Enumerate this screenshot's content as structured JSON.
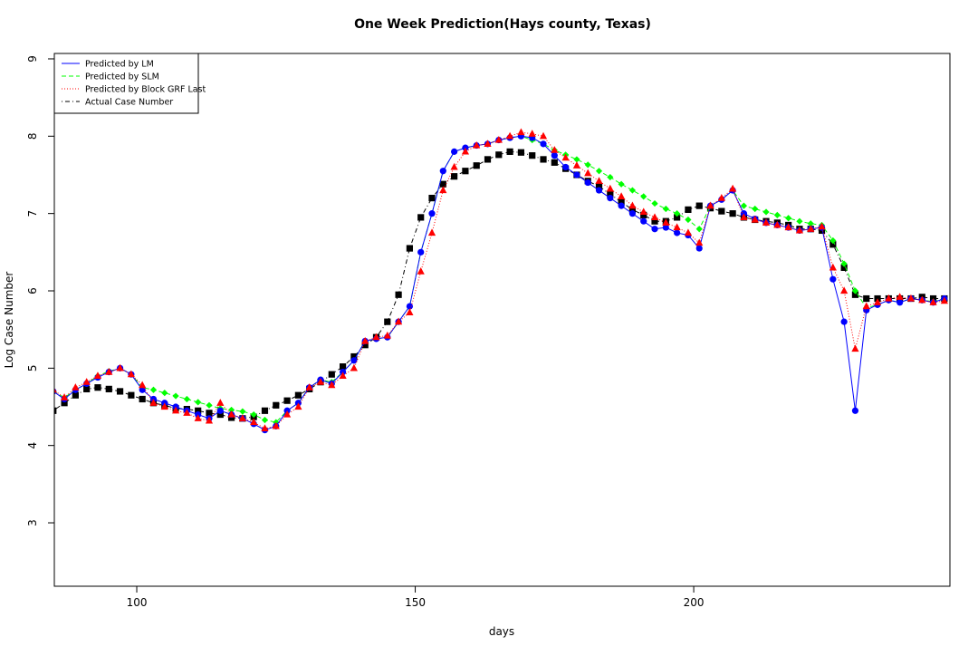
{
  "chart_data": {
    "type": "line",
    "title": "One Week Prediction(Hays county, Texas)",
    "x_label": "days",
    "y_label": "Log Case Number",
    "xlim": [
      85.2,
      246
    ],
    "ylim": [
      2.18,
      9.07
    ],
    "xticks": [
      100,
      150,
      200
    ],
    "yticks": [
      3,
      4,
      5,
      6,
      7,
      8,
      9
    ],
    "legend_position": "top-left",
    "x": [
      85,
      87,
      89,
      91,
      93,
      95,
      97,
      99,
      101,
      103,
      105,
      107,
      109,
      111,
      113,
      115,
      117,
      119,
      121,
      123,
      125,
      127,
      129,
      131,
      133,
      135,
      137,
      139,
      141,
      143,
      145,
      147,
      149,
      151,
      153,
      155,
      157,
      159,
      161,
      163,
      165,
      167,
      169,
      171,
      173,
      175,
      177,
      179,
      181,
      183,
      185,
      187,
      189,
      191,
      193,
      195,
      197,
      199,
      201,
      203,
      205,
      207,
      209,
      211,
      213,
      215,
      217,
      219,
      221,
      223,
      225,
      227,
      229,
      231,
      233,
      235,
      237,
      239,
      241,
      243,
      245
    ],
    "series": [
      {
        "name": "Predicted by LM",
        "color": "#0000ff",
        "line_style": "solid",
        "marker": "circle",
        "values": [
          4.7,
          4.6,
          4.72,
          4.8,
          4.88,
          4.95,
          5.0,
          4.92,
          4.72,
          4.6,
          4.55,
          4.5,
          4.45,
          4.4,
          4.35,
          4.45,
          4.4,
          4.35,
          4.28,
          4.2,
          4.25,
          4.45,
          4.55,
          4.75,
          4.85,
          4.8,
          4.95,
          5.1,
          5.35,
          5.38,
          5.4,
          5.6,
          5.8,
          6.5,
          7.0,
          7.55,
          7.8,
          7.85,
          7.88,
          7.9,
          7.95,
          7.98,
          8.0,
          7.98,
          7.9,
          7.75,
          7.6,
          7.5,
          7.4,
          7.3,
          7.2,
          7.1,
          7.0,
          6.9,
          6.8,
          6.82,
          6.75,
          6.72,
          6.55,
          7.1,
          7.18,
          7.3,
          7.0,
          6.93,
          6.88,
          6.85,
          6.82,
          6.78,
          6.8,
          6.82,
          6.15,
          5.6,
          4.45,
          5.75,
          5.82,
          5.88,
          5.85,
          5.9,
          5.88,
          5.85,
          5.9
        ]
      },
      {
        "name": "Predicted by SLM",
        "color": "#00ff00",
        "line_style": "dashed",
        "marker": "diamond",
        "values": [
          4.7,
          4.62,
          4.72,
          4.8,
          4.9,
          4.96,
          5.0,
          4.92,
          4.75,
          4.72,
          4.68,
          4.64,
          4.6,
          4.56,
          4.52,
          4.48,
          4.46,
          4.44,
          4.4,
          4.33,
          4.3,
          4.45,
          4.55,
          4.75,
          4.85,
          4.82,
          4.95,
          5.1,
          5.35,
          5.38,
          5.4,
          5.6,
          5.8,
          6.5,
          7.0,
          7.55,
          7.8,
          7.85,
          7.88,
          7.9,
          7.95,
          7.98,
          8.0,
          7.95,
          7.9,
          7.82,
          7.76,
          7.7,
          7.63,
          7.55,
          7.47,
          7.38,
          7.3,
          7.22,
          7.13,
          7.06,
          7.0,
          6.92,
          6.8,
          7.1,
          7.18,
          7.3,
          7.1,
          7.06,
          7.02,
          6.98,
          6.94,
          6.9,
          6.87,
          6.85,
          6.65,
          6.35,
          6.0,
          5.78,
          5.82,
          5.88,
          5.85,
          5.9,
          5.88,
          5.86,
          5.9
        ]
      },
      {
        "name": "Predicted by Block GRF Last",
        "color": "#ff0000",
        "line_style": "dotted",
        "marker": "triangle",
        "values": [
          4.72,
          4.62,
          4.75,
          4.82,
          4.9,
          4.95,
          5.0,
          4.92,
          4.78,
          4.55,
          4.5,
          4.45,
          4.42,
          4.35,
          4.32,
          4.55,
          4.4,
          4.35,
          4.3,
          4.22,
          4.25,
          4.4,
          4.5,
          4.75,
          4.82,
          4.78,
          4.9,
          5.0,
          5.35,
          5.4,
          5.42,
          5.6,
          5.72,
          6.25,
          6.75,
          7.3,
          7.6,
          7.8,
          7.88,
          7.9,
          7.95,
          8.0,
          8.05,
          8.03,
          8.0,
          7.82,
          7.72,
          7.62,
          7.52,
          7.42,
          7.32,
          7.22,
          7.1,
          7.02,
          6.95,
          6.88,
          6.82,
          6.75,
          6.62,
          7.1,
          7.2,
          7.32,
          6.95,
          6.92,
          6.88,
          6.85,
          6.82,
          6.78,
          6.8,
          6.83,
          6.3,
          6.0,
          5.25,
          5.8,
          5.85,
          5.9,
          5.92,
          5.9,
          5.88,
          5.85,
          5.87
        ]
      },
      {
        "name": "Actual Case Number",
        "color": "#000000",
        "line_style": "dotdash",
        "marker": "square",
        "values": [
          4.45,
          4.55,
          4.65,
          4.73,
          4.75,
          4.73,
          4.7,
          4.65,
          4.6,
          4.55,
          4.52,
          4.48,
          4.47,
          4.45,
          4.42,
          4.4,
          4.36,
          4.35,
          4.37,
          4.45,
          4.52,
          4.58,
          4.65,
          4.73,
          4.82,
          4.92,
          5.02,
          5.15,
          5.3,
          5.4,
          5.6,
          5.95,
          6.55,
          6.95,
          7.2,
          7.38,
          7.48,
          7.55,
          7.62,
          7.7,
          7.76,
          7.8,
          7.79,
          7.75,
          7.7,
          7.66,
          7.58,
          7.5,
          7.42,
          7.35,
          7.25,
          7.15,
          7.05,
          6.98,
          6.9,
          6.9,
          6.95,
          7.05,
          7.1,
          7.07,
          7.03,
          7.0,
          6.95,
          6.92,
          6.9,
          6.88,
          6.85,
          6.8,
          6.8,
          6.78,
          6.6,
          6.3,
          5.95,
          5.9,
          5.9,
          5.9,
          5.9,
          5.9,
          5.92,
          5.9,
          5.9
        ]
      }
    ]
  }
}
